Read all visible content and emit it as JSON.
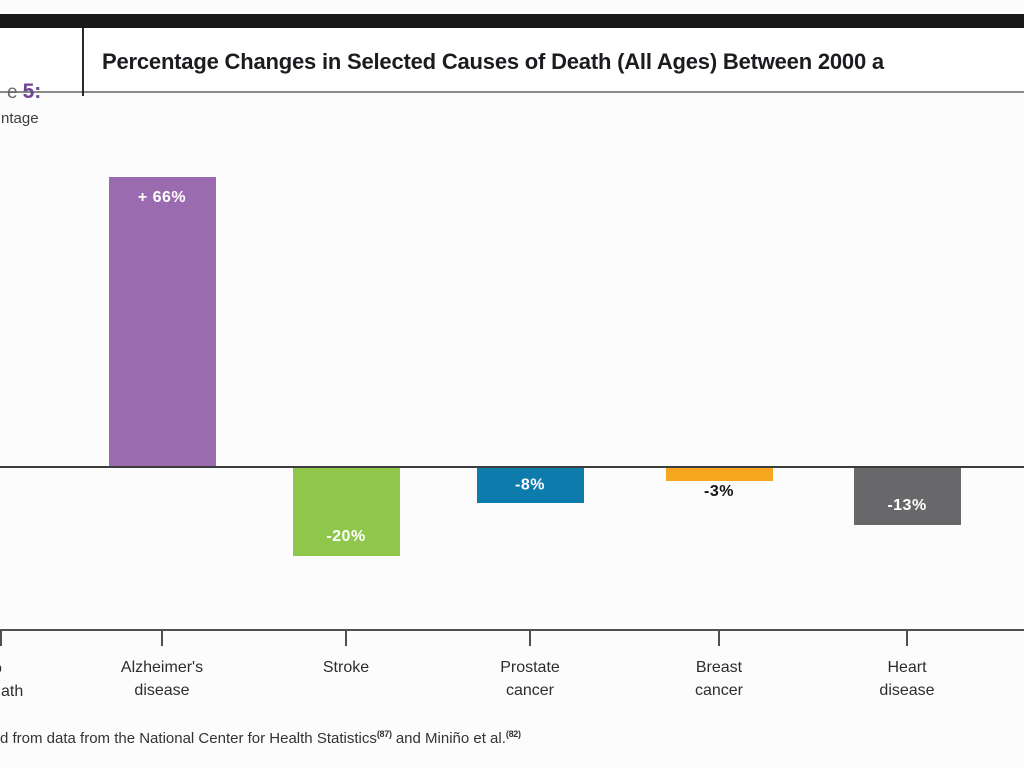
{
  "header": {
    "figure_prefix_fragment": "e",
    "figure_number": "5:",
    "title": "Percentage Changes in Selected Causes of Death (All Ages) Between 2000 a"
  },
  "y_axis_title_fragment": "ntage",
  "chart_data": {
    "type": "bar",
    "title": "Percentage Changes in Selected Causes of Death (All Ages) Between 2000 a",
    "ylabel_visible_fragment": "ntage",
    "categories": [
      "Alzheimer's disease",
      "Stroke",
      "Prostate cancer",
      "Breast cancer",
      "Heart disease"
    ],
    "category_lines": [
      [
        "Alzheimer's",
        "disease"
      ],
      [
        "Stroke"
      ],
      [
        "Prostate",
        "cancer"
      ],
      [
        "Breast",
        "cancer"
      ],
      [
        "Heart",
        "disease"
      ]
    ],
    "values": [
      66,
      -20,
      -8,
      -3,
      -13
    ],
    "bar_labels": [
      "+ 66%",
      "-20%",
      "-8%",
      "-3%",
      "-13%"
    ],
    "bar_colors": [
      "#9a6bae",
      "#8ec74b",
      "#0e7bad",
      "#f6a71e",
      "#68686b"
    ],
    "bar_label_placement": [
      "inside-top",
      "inside-bottom",
      "inside-middle",
      "below-outside",
      "inside-bottom"
    ],
    "bar_label_colors": [
      "#ffffff",
      "#ffffff",
      "#ffffff",
      "#141414",
      "#ffffff"
    ],
    "baseline_value": 0,
    "grid": false,
    "legend": false,
    "cropped_left_category": {
      "line1_fragment": "o",
      "line2_fragment": "ath"
    }
  },
  "footnote": {
    "text_start_fragment": "d from data from the National Center for Health Statistics",
    "superscript_1": "(87)",
    "text_middle": " and Miniño et al.",
    "superscript_2": "(82)"
  },
  "colors": {
    "top_bar": "#181818",
    "figure_number_accent": "#6f4596",
    "zero_line": "#3c3c3c",
    "axis_line": "#505050"
  }
}
